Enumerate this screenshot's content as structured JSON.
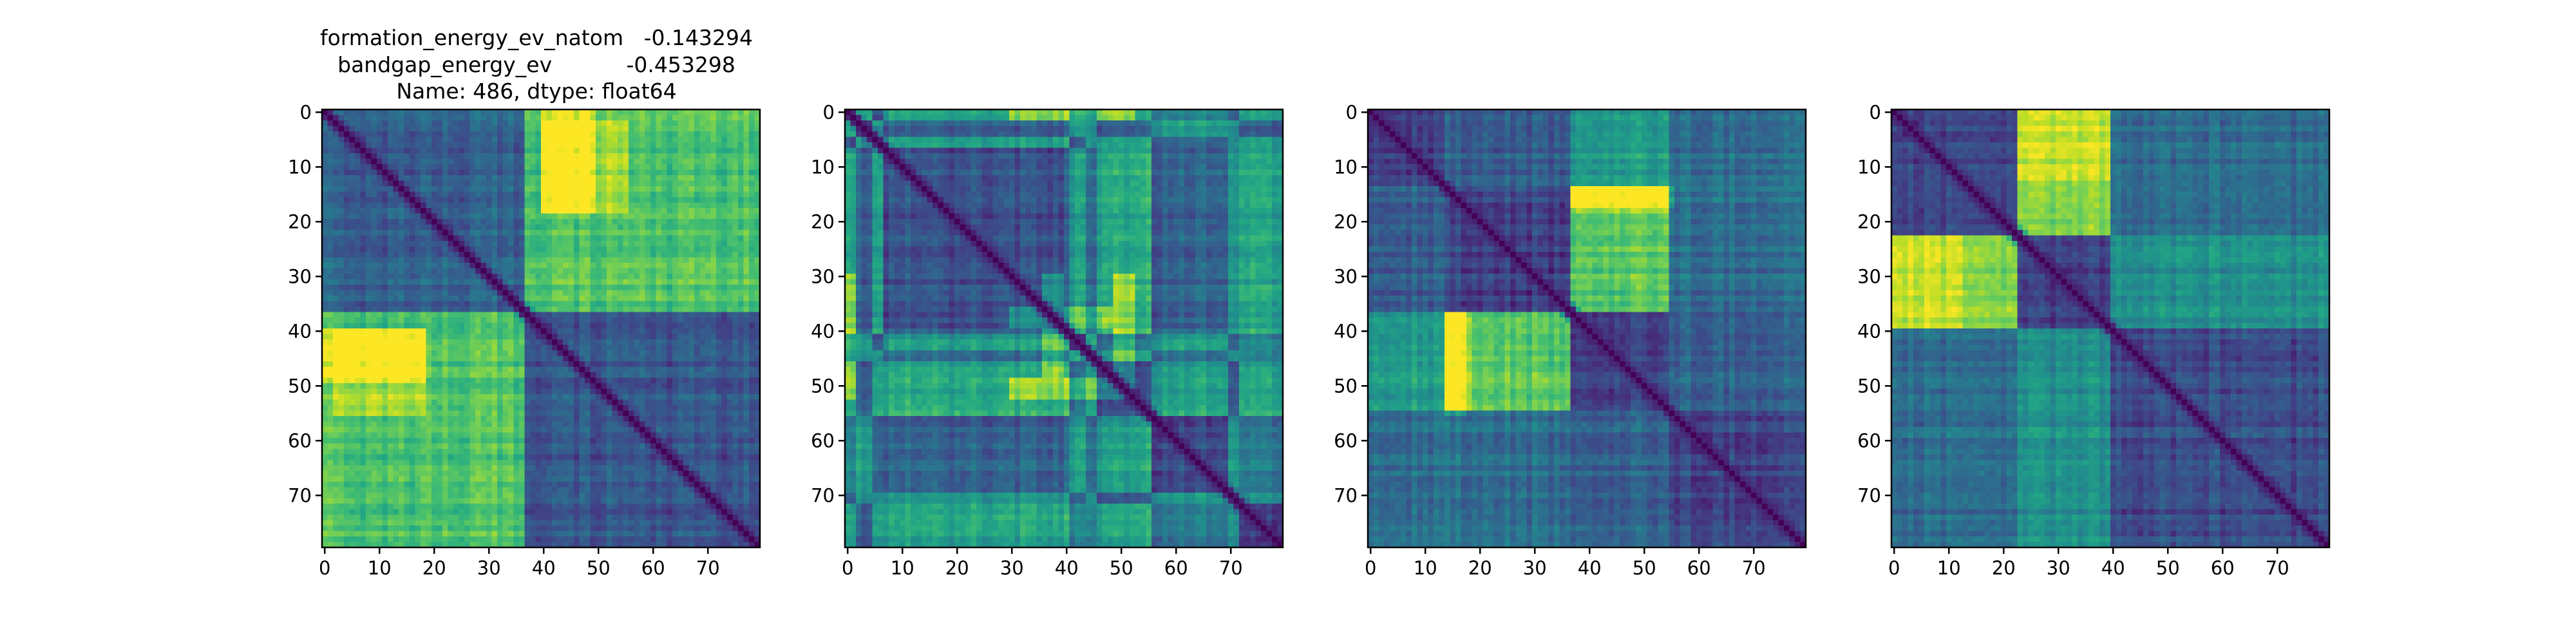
{
  "figure": {
    "title_lines": [
      "formation_energy_ev_natom   -0.143294",
      "bandgap_energy_ev           -0.453298",
      "Name: 486, dtype: float64"
    ]
  },
  "chart_data": [
    {
      "type": "heatmap",
      "title": "formation_energy_ev_natom   -0.143294\nbandgap_energy_ev           -0.453298\nName: 486, dtype: float64",
      "colormap": "viridis",
      "matrix_size": 80,
      "xlim": [
        -0.5,
        79.5
      ],
      "ylim": [
        79.5,
        -0.5
      ],
      "xticks": [
        0,
        10,
        20,
        30,
        40,
        50,
        60,
        70
      ],
      "yticks": [
        0,
        10,
        20,
        30,
        40,
        50,
        60,
        70
      ],
      "xtick_labels": [
        "0",
        "10",
        "20",
        "30",
        "40",
        "50",
        "60",
        "70"
      ],
      "ytick_labels": [
        "0",
        "10",
        "20",
        "30",
        "40",
        "50",
        "60",
        "70"
      ],
      "block_boundaries": [
        0,
        37,
        80
      ],
      "block_means": [
        [
          0.3,
          0.72
        ],
        [
          0.72,
          0.28
        ]
      ],
      "row_modulation": [
        {
          "indices": [
            40,
            41,
            42,
            43,
            44,
            45,
            46,
            47,
            48,
            49
          ],
          "col_range": [
            0,
            18
          ],
          "delta": 0.18
        },
        {
          "indices": [
            2,
            3,
            4,
            5,
            6,
            7,
            8,
            9,
            10,
            11,
            12,
            13,
            14,
            15,
            16,
            17,
            18
          ],
          "col_range": [
            40,
            55
          ],
          "delta": 0.15
        }
      ]
    },
    {
      "type": "heatmap",
      "title": "",
      "colormap": "viridis",
      "matrix_size": 80,
      "xlim": [
        -0.5,
        79.5
      ],
      "ylim": [
        79.5,
        -0.5
      ],
      "xticks": [
        0,
        10,
        20,
        30,
        40,
        50,
        60,
        70
      ],
      "yticks": [
        0,
        10,
        20,
        30,
        40,
        50,
        60,
        70
      ],
      "xtick_labels": [
        "0",
        "10",
        "20",
        "30",
        "40",
        "50",
        "60",
        "70"
      ],
      "ytick_labels": [
        "0",
        "10",
        "20",
        "30",
        "40",
        "50",
        "60",
        "70"
      ],
      "block_boundaries": [
        0,
        2,
        5,
        7,
        41,
        44,
        46,
        56,
        70,
        72,
        80
      ],
      "block_means": [
        [
          0.2,
          0.6,
          0.25,
          0.55,
          0.35,
          0.3,
          0.55,
          0.4,
          0.3,
          0.55
        ],
        [
          0.6,
          0.15,
          0.55,
          0.3,
          0.55,
          0.5,
          0.3,
          0.55,
          0.5,
          0.3
        ],
        [
          0.25,
          0.55,
          0.2,
          0.6,
          0.3,
          0.55,
          0.6,
          0.35,
          0.55,
          0.6
        ],
        [
          0.55,
          0.3,
          0.6,
          0.25,
          0.55,
          0.35,
          0.6,
          0.3,
          0.55,
          0.6
        ],
        [
          0.35,
          0.55,
          0.3,
          0.55,
          0.15,
          0.6,
          0.35,
          0.55,
          0.35,
          0.45
        ],
        [
          0.3,
          0.5,
          0.55,
          0.35,
          0.6,
          0.2,
          0.55,
          0.35,
          0.55,
          0.45
        ],
        [
          0.55,
          0.3,
          0.6,
          0.6,
          0.35,
          0.55,
          0.2,
          0.55,
          0.3,
          0.6
        ],
        [
          0.4,
          0.55,
          0.35,
          0.3,
          0.55,
          0.35,
          0.55,
          0.2,
          0.55,
          0.4
        ],
        [
          0.3,
          0.5,
          0.55,
          0.55,
          0.35,
          0.55,
          0.3,
          0.55,
          0.2,
          0.55
        ],
        [
          0.55,
          0.3,
          0.6,
          0.6,
          0.45,
          0.45,
          0.6,
          0.4,
          0.55,
          0.2
        ]
      ],
      "row_modulation": [
        {
          "indices": [
            0,
            1,
            36,
            37,
            38,
            39,
            49,
            50,
            51,
            52
          ],
          "col_range": [
            30,
            52
          ],
          "delta": 0.25
        }
      ]
    },
    {
      "type": "heatmap",
      "title": "",
      "colormap": "viridis",
      "matrix_size": 80,
      "xlim": [
        -0.5,
        79.5
      ],
      "ylim": [
        79.5,
        -0.5
      ],
      "xticks": [
        0,
        10,
        20,
        30,
        40,
        50,
        60,
        70
      ],
      "yticks": [
        0,
        10,
        20,
        30,
        40,
        50,
        60,
        70
      ],
      "xtick_labels": [
        "0",
        "10",
        "20",
        "30",
        "40",
        "50",
        "60",
        "70"
      ],
      "ytick_labels": [
        "0",
        "10",
        "20",
        "30",
        "40",
        "50",
        "60",
        "70"
      ],
      "block_boundaries": [
        0,
        14,
        37,
        55,
        80
      ],
      "block_means": [
        [
          0.2,
          0.3,
          0.55,
          0.35
        ],
        [
          0.3,
          0.2,
          0.75,
          0.35
        ],
        [
          0.55,
          0.75,
          0.2,
          0.3
        ],
        [
          0.35,
          0.35,
          0.3,
          0.18
        ]
      ],
      "row_modulation": [
        {
          "indices": [
            14,
            15,
            16,
            17
          ],
          "col_range": [
            37,
            55
          ],
          "delta": 0.15
        },
        {
          "indices": [
            37,
            38,
            39,
            40,
            41,
            42,
            43,
            44,
            45,
            46,
            47,
            48,
            49,
            50,
            51,
            52,
            53,
            54
          ],
          "col_range": [
            14,
            18
          ],
          "delta": 0.15
        }
      ]
    },
    {
      "type": "heatmap",
      "title": "",
      "colormap": "viridis",
      "matrix_size": 80,
      "xlim": [
        -0.5,
        79.5
      ],
      "ylim": [
        79.5,
        -0.5
      ],
      "xticks": [
        0,
        10,
        20,
        30,
        40,
        50,
        60,
        70
      ],
      "yticks": [
        0,
        10,
        20,
        30,
        40,
        50,
        60,
        70
      ],
      "xtick_labels": [
        "0",
        "10",
        "20",
        "30",
        "40",
        "50",
        "60",
        "70"
      ],
      "ytick_labels": [
        "0",
        "10",
        "20",
        "30",
        "40",
        "50",
        "60",
        "70"
      ],
      "block_boundaries": [
        0,
        23,
        40,
        80
      ],
      "block_means": [
        [
          0.22,
          0.78,
          0.35
        ],
        [
          0.78,
          0.2,
          0.5
        ],
        [
          0.35,
          0.5,
          0.22
        ]
      ],
      "row_modulation": [
        {
          "indices": [
            0,
            1,
            2,
            3,
            4,
            5,
            6,
            7,
            8,
            9,
            10,
            11,
            12,
            13,
            14,
            15,
            16,
            17,
            18,
            19,
            20,
            21,
            22
          ],
          "col_range": [
            23,
            40
          ],
          "delta": 0.05
        },
        {
          "indices": [
            23,
            24,
            25,
            26,
            27,
            28,
            29,
            30,
            31,
            32,
            33,
            34,
            35,
            36,
            37,
            38,
            39
          ],
          "col_range": [
            0,
            12
          ],
          "delta": 0.1
        }
      ]
    }
  ]
}
